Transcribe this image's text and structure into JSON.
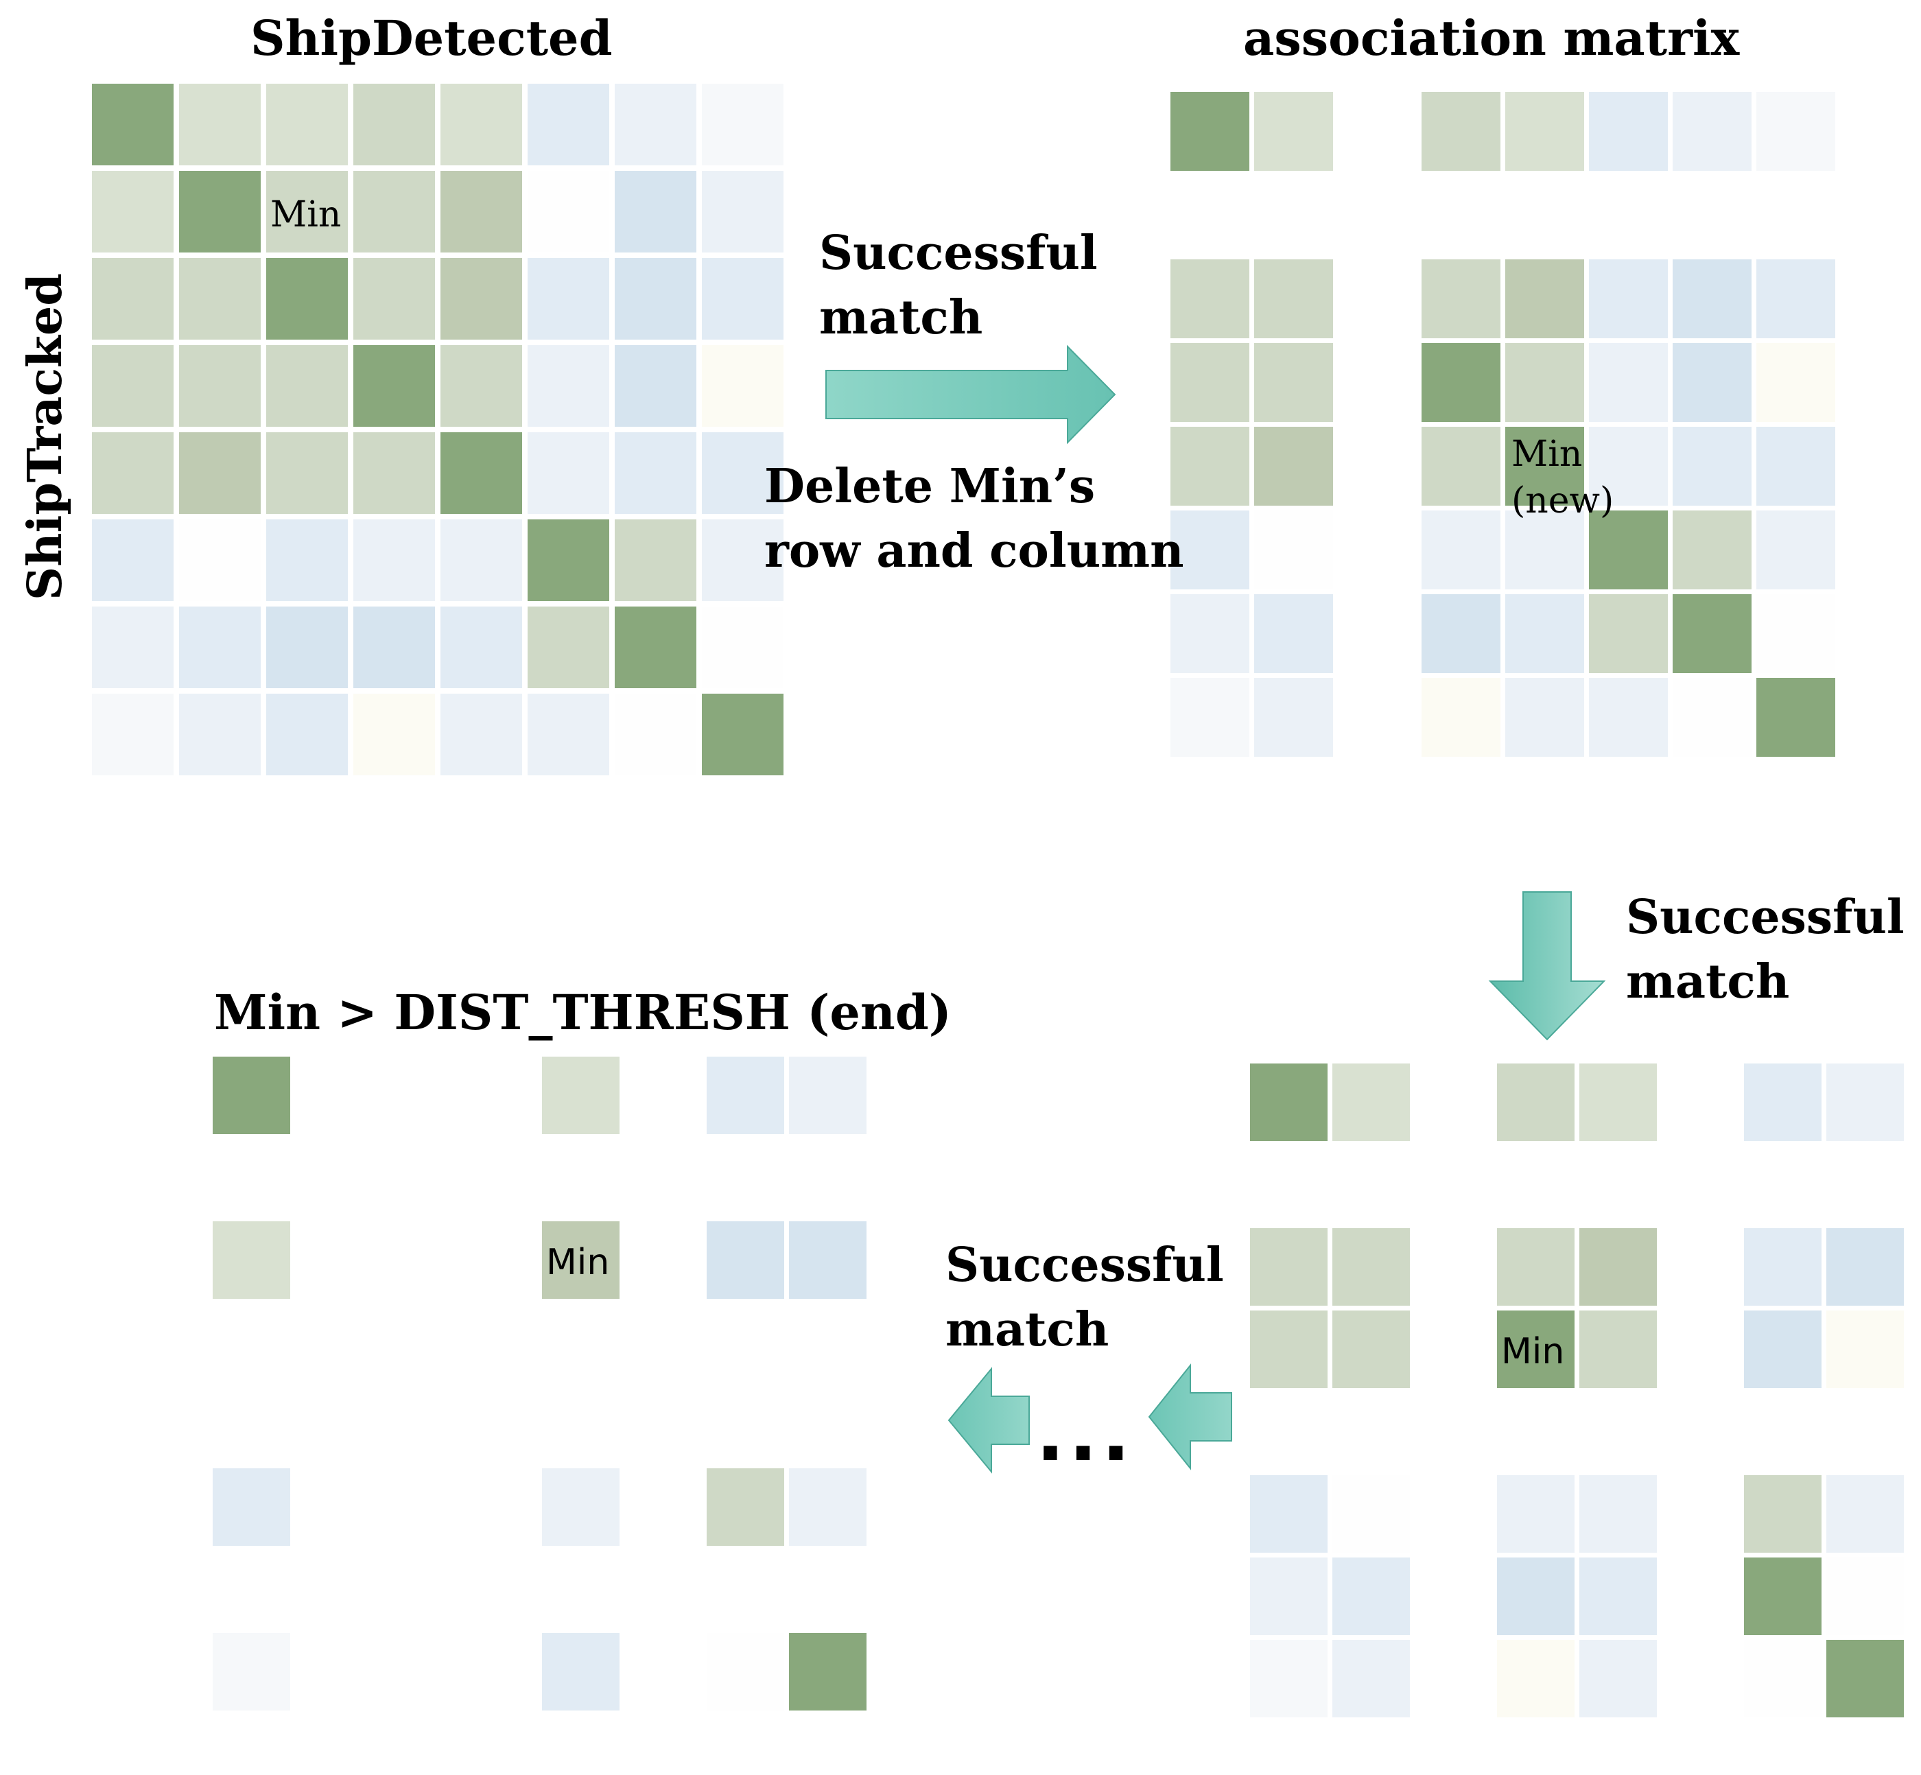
{
  "labels": {
    "cols_title": "ShipDetected",
    "rows_title": "ShipTracked",
    "matrix_title": "association matrix",
    "end_title": "Min > DIST_THRESH (end)",
    "step1_line1": "Successful",
    "step1_line2": "match",
    "delete_line1": "Delete Min’s",
    "delete_line2": "row and column",
    "step2_line1": "Successful",
    "step2_line2": "match",
    "step3_line1": "Successful",
    "step3_line2": "match",
    "ellipsis": "..."
  },
  "palette": {
    "G": "#89a87c",
    "G2": "#bfcbb2",
    "L": "#cfd9c6",
    "L2": "#d9e1d1",
    "B": "#c8dae9",
    "B2": "#d6e4ef",
    "C": "#e1ebf4",
    "C2": "#ebf1f7",
    "W": "#f6f8fa",
    "Y": "#fcfbf3",
    "X": "#fefefe"
  },
  "matrices": [
    {
      "id": "initial",
      "rows": [
        "G L2 L2 L L2 C C2 W",
        "L2 G L L G2 X B2 C2",
        "L L G L G2 C B2 C",
        "L L L G L C2 B2 Y",
        "L G2 L L G C2 C C",
        "C X C C2 C2 G L C2",
        "C2 C B2 B2 C L G X",
        "W C2 C Y C2 C2 X G"
      ],
      "labels": [
        {
          "row": 1,
          "col": 2,
          "text": "Min",
          "style": "serif"
        }
      ]
    },
    {
      "id": "after-first-match",
      "rows": [
        "G L2 - L L2 C C2 W",
        "- - - - - - - -",
        "L L - L G2 C B2 C",
        "L L - G L C2 B2 Y",
        "L G2 - L G C2 C C",
        "C X - C2 C2 G L C2",
        "C2 C - B2 C L G X",
        "W C2 - Y C2 C2 X G"
      ],
      "labels": [
        {
          "row": 4,
          "col": 5,
          "text": "Min",
          "style": "serif"
        },
        {
          "row": 4,
          "col": 5,
          "text": "(new)",
          "style": "serif",
          "line": 2
        }
      ]
    },
    {
      "id": "after-second-match",
      "rows": [
        "G L2 - L L2 - C C2",
        "- - - - - - - -",
        "L L - L G2 - C B2",
        "L L - G L - B2 Y",
        "- - - - - - - -",
        "C X - C2 C2 - L C2",
        "C2 C - B2 C - G X",
        "W C2 - Y C2 - X G"
      ],
      "labels": [
        {
          "row": 3,
          "col": 3,
          "text": "Min",
          "style": "sans"
        }
      ]
    },
    {
      "id": "end-state",
      "rows": [
        "G - - - L2 - C C2",
        "- - - - - - - -",
        "L2 - - - G2 - B2 B2",
        "- - - - - - - -",
        "- - - - - - - -",
        "C - - - C2 - L C2",
        "- - - - - - - -",
        "W - - - C - X G"
      ],
      "labels": [
        {
          "row": 2,
          "col": 4,
          "text": "Min",
          "style": "sans"
        }
      ]
    }
  ]
}
